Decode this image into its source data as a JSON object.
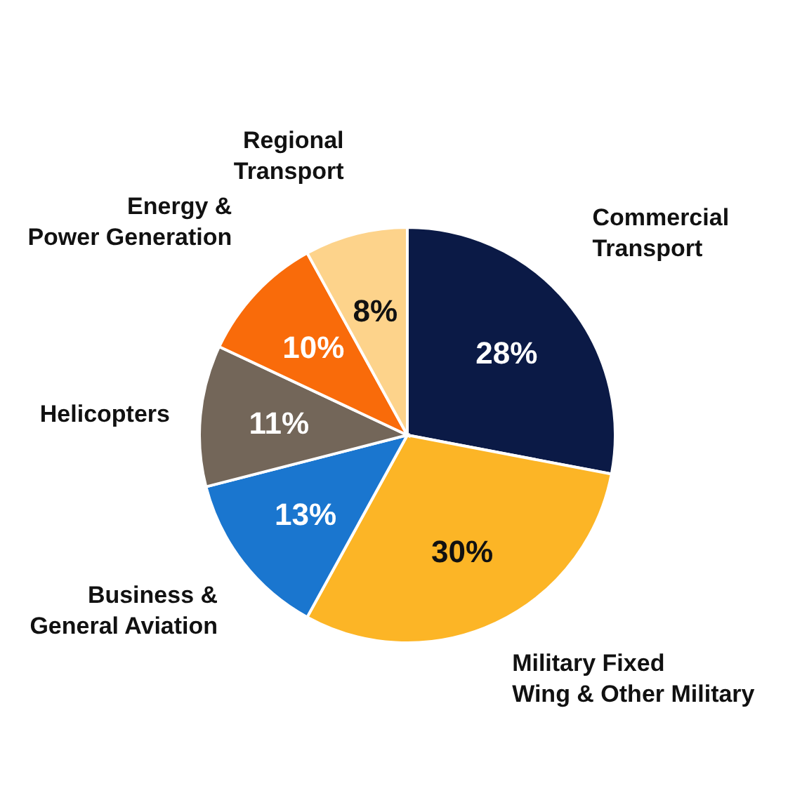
{
  "chart_data": {
    "type": "pie",
    "categories": [
      "Commercial\nTransport",
      "Military Fixed\nWing & Other Military",
      "Business &\nGeneral Aviation",
      "Helicopters",
      "Energy &\nPower Generation",
      "Regional\nTransport"
    ],
    "values": [
      28,
      30,
      13,
      11,
      10,
      8
    ],
    "colors": [
      "#0b1a46",
      "#fcb526",
      "#1a76cf",
      "#736659",
      "#f96b0a",
      "#fdd38b"
    ],
    "value_labels": [
      "28%",
      "30%",
      "13%",
      "11%",
      "10%",
      "8%"
    ]
  }
}
